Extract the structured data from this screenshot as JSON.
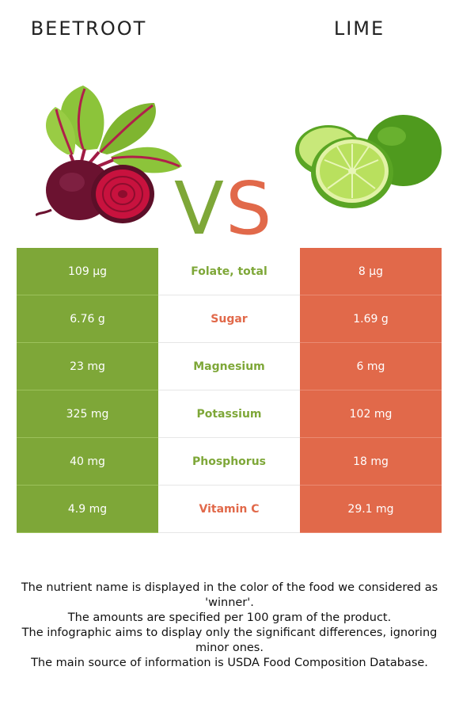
{
  "header": {
    "left_food": "BEETROOT",
    "right_food": "LIME"
  },
  "vs": {
    "v": "V",
    "s": "S"
  },
  "colors": {
    "winner_left": "#7ea738",
    "winner_right": "#e1694a"
  },
  "rows": [
    {
      "left": "109 µg",
      "nutrient": "Folate, total",
      "right": "8 µg",
      "winner": "left"
    },
    {
      "left": "6.76 g",
      "nutrient": "Sugar",
      "right": "1.69 g",
      "winner": "right"
    },
    {
      "left": "23 mg",
      "nutrient": "Magnesium",
      "right": "6 mg",
      "winner": "left"
    },
    {
      "left": "325 mg",
      "nutrient": "Potassium",
      "right": "102 mg",
      "winner": "left"
    },
    {
      "left": "40 mg",
      "nutrient": "Phosphorus",
      "right": "18 mg",
      "winner": "left"
    },
    {
      "left": "4.9 mg",
      "nutrient": "Vitamin C",
      "right": "29.1 mg",
      "winner": "right"
    }
  ],
  "notes": [
    "The nutrient name is displayed in the color of the food we considered as 'winner'.",
    "The amounts are specified per 100 gram of the product.",
    "The infographic aims to display only the significant differences, ignoring minor ones.",
    "The main source of information is USDA Food Composition Database."
  ]
}
